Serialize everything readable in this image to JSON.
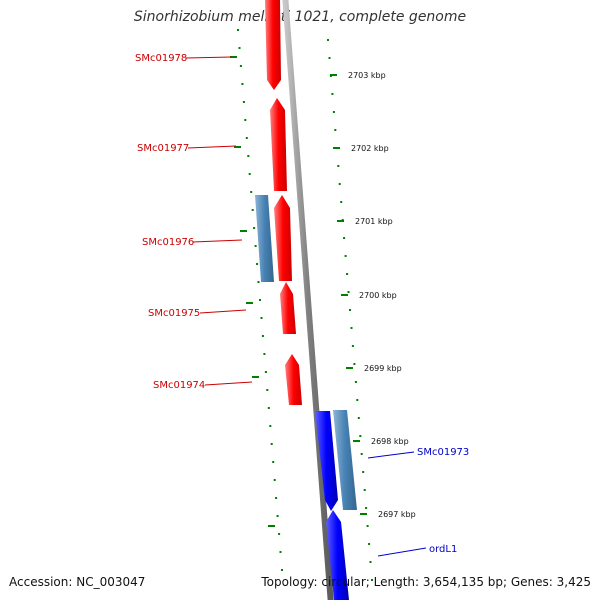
{
  "title": "Sinorhizobium meliloti 1021, complete genome",
  "accession": "Accession: NC_003047",
  "summary": "Topology: circular; Length: 3,654,135 bp; Genes: 3,425",
  "colors": {
    "forward_gene": "#ff0000",
    "reverse_gene": "#0000ff",
    "cds_feature": "#4682b4",
    "backbone": "#808080",
    "tick": "#008000",
    "forward_label": "#cc0000",
    "reverse_label": "#0000cc"
  },
  "ruler": {
    "unit": "kbp",
    "labels": [
      "2703 kbp",
      "2702 kbp",
      "2701 kbp",
      "2700 kbp",
      "2699 kbp",
      "2698 kbp",
      "2697 kbp"
    ]
  },
  "genes": [
    {
      "name": "SMc01978",
      "strand": "forward"
    },
    {
      "name": "SMc01977",
      "strand": "forward"
    },
    {
      "name": "SMc01976",
      "strand": "forward"
    },
    {
      "name": "SMc01975",
      "strand": "forward"
    },
    {
      "name": "SMc01974",
      "strand": "forward"
    },
    {
      "name": "SMc01973",
      "strand": "reverse"
    },
    {
      "name": "ordL1",
      "strand": "reverse"
    }
  ]
}
